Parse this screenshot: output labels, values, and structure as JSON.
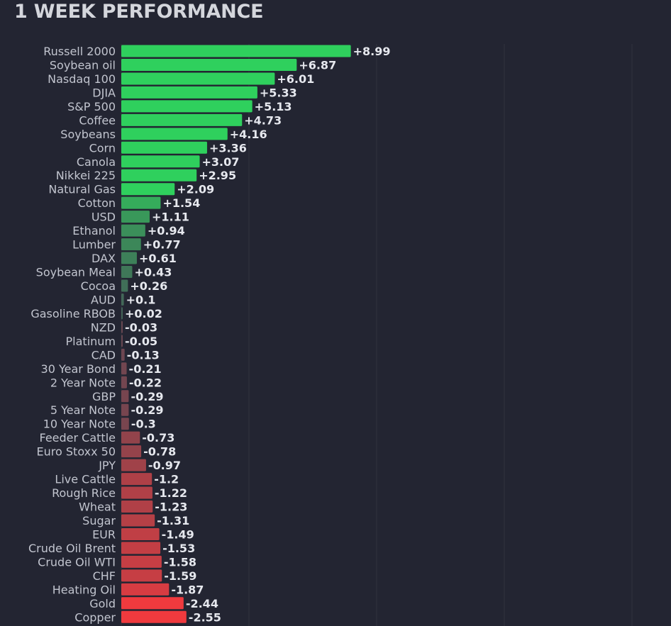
{
  "chart_data": {
    "type": "bar",
    "orientation": "horizontal",
    "title": "1 WEEK PERFORMANCE",
    "xlabel": "",
    "ylabel": "",
    "grid": true,
    "xlim": [
      -3,
      21
    ],
    "categories": [
      "Russell 2000",
      "Soybean oil",
      "Nasdaq 100",
      "DJIA",
      "S&P 500",
      "Coffee",
      "Soybeans",
      "Corn",
      "Canola",
      "Nikkei 225",
      "Natural Gas",
      "Cotton",
      "USD",
      "Ethanol",
      "Lumber",
      "DAX",
      "Soybean Meal",
      "Cocoa",
      "AUD",
      "Gasoline RBOB",
      "NZD",
      "Platinum",
      "CAD",
      "30 Year Bond",
      "2 Year Note",
      "GBP",
      "5 Year Note",
      "10 Year Note",
      "Feeder Cattle",
      "Euro Stoxx 50",
      "JPY",
      "Live Cattle",
      "Rough Rice",
      "Wheat",
      "Sugar",
      "EUR",
      "Crude Oil Brent",
      "Crude Oil WTI",
      "CHF",
      "Heating Oil",
      "Gold",
      "Copper"
    ],
    "values": [
      8.99,
      6.87,
      6.01,
      5.33,
      5.13,
      4.73,
      4.16,
      3.36,
      3.07,
      2.95,
      2.09,
      1.54,
      1.11,
      0.94,
      0.77,
      0.61,
      0.43,
      0.26,
      0.1,
      0.02,
      -0.03,
      -0.05,
      -0.13,
      -0.21,
      -0.22,
      -0.29,
      -0.29,
      -0.3,
      -0.73,
      -0.78,
      -0.97,
      -1.2,
      -1.22,
      -1.23,
      -1.31,
      -1.49,
      -1.53,
      -1.58,
      -1.59,
      -1.87,
      -2.44,
      -2.55
    ],
    "value_labels": [
      "+8.99",
      "+6.87",
      "+6.01",
      "+5.33",
      "+5.13",
      "+4.73",
      "+4.16",
      "+3.36",
      "+3.07",
      "+2.95",
      "+2.09",
      "+1.54",
      "+1.11",
      "+0.94",
      "+0.77",
      "+0.61",
      "+0.43",
      "+0.26",
      "+0.1",
      "+0.02",
      "-0.03",
      "-0.05",
      "-0.13",
      "-0.21",
      "-0.22",
      "-0.29",
      "-0.29",
      "-0.3",
      "-0.73",
      "-0.78",
      "-0.97",
      "-1.2",
      "-1.22",
      "-1.23",
      "-1.31",
      "-1.49",
      "-1.53",
      "-1.58",
      "-1.59",
      "-1.87",
      "-2.44",
      "-2.55"
    ],
    "colors": {
      "positive": "#2fd05d",
      "negative": "#f03a3e",
      "neutral": "#474a56",
      "background": "#232532",
      "grid": "#30323f"
    }
  }
}
